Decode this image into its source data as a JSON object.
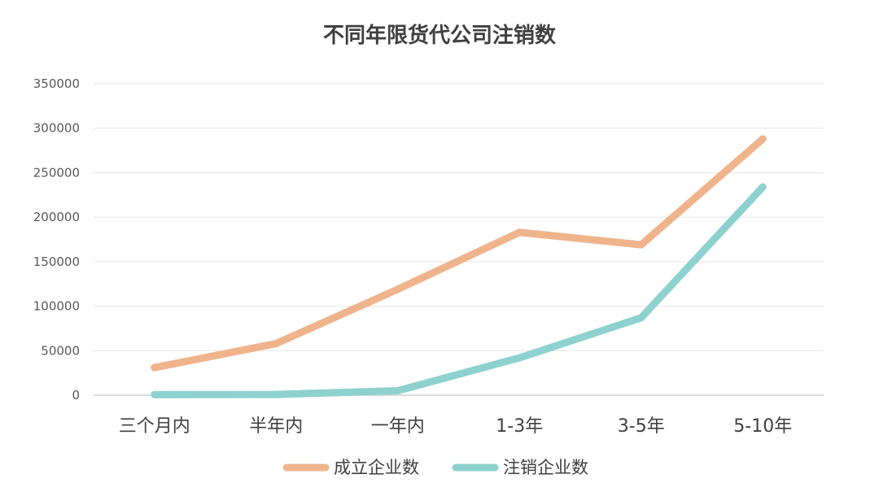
{
  "chart_data": {
    "type": "line",
    "title": "不同年限货代公司注销数",
    "categories": [
      "三个月内",
      "半年内",
      "一年内",
      "1-3年",
      "3-5年",
      "5-10年"
    ],
    "series": [
      {
        "name": "成立企业数",
        "color": "#f0b48c",
        "values": [
          31000,
          58000,
          119000,
          183000,
          169000,
          288000
        ]
      },
      {
        "name": "注销企业数",
        "color": "#8ed2d0",
        "values": [
          600,
          800,
          5000,
          42000,
          87000,
          234000
        ]
      }
    ],
    "ylim": [
      0,
      350000
    ],
    "yticks": [
      "0",
      "50000",
      "100000",
      "150000",
      "200000",
      "250000",
      "300000",
      "350000"
    ],
    "grid": true,
    "legend_position": "bottom"
  }
}
